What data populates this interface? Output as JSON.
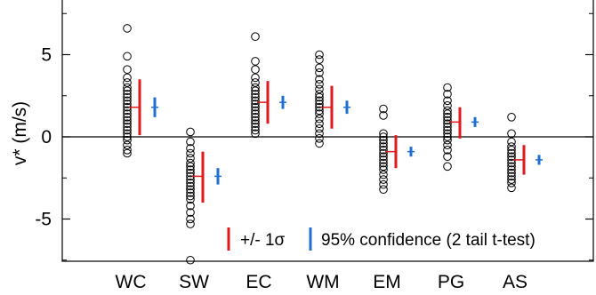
{
  "chart_data": {
    "type": "scatter",
    "ylabel": "v* (m/s)",
    "ylim": [
      -7.8,
      8.0
    ],
    "yticks": [
      -5,
      0,
      5
    ],
    "ytick_labels": [
      "-5",
      "0",
      "5"
    ],
    "zero_line": true,
    "grid": false,
    "legend_position": "bottom-right",
    "categories": [
      "WC",
      "SW",
      "EC",
      "WM",
      "EM",
      "PG",
      "AS"
    ],
    "colors": {
      "points": "#000000",
      "sigma": "#e0191c",
      "ci": "#1f6fd1",
      "axis": "#000000"
    },
    "series": [
      {
        "name": "+/- 1σ",
        "values": [
          {
            "mean": 1.8,
            "low": 0.1,
            "high": 3.5
          },
          {
            "mean": -2.4,
            "low": -4.0,
            "high": -0.9
          },
          {
            "mean": 2.1,
            "low": 0.8,
            "high": 3.4
          },
          {
            "mean": 1.8,
            "low": 0.5,
            "high": 3.1
          },
          {
            "mean": -0.9,
            "low": -1.9,
            "high": 0.1
          },
          {
            "mean": 0.9,
            "low": -0.1,
            "high": 1.8
          },
          {
            "mean": -1.4,
            "low": -2.3,
            "high": -0.5
          }
        ]
      },
      {
        "name": "95% confidence (2 tail t-test)",
        "values": [
          {
            "mean": 1.8,
            "low": 1.2,
            "high": 2.4
          },
          {
            "mean": -2.4,
            "low": -2.9,
            "high": -1.9
          },
          {
            "mean": 2.1,
            "low": 1.7,
            "high": 2.5
          },
          {
            "mean": 1.8,
            "low": 1.4,
            "high": 2.2
          },
          {
            "mean": -0.9,
            "low": -1.2,
            "high": -0.6
          },
          {
            "mean": 0.9,
            "low": 0.6,
            "high": 1.2
          },
          {
            "mean": -1.4,
            "low": -1.7,
            "high": -1.1
          }
        ]
      }
    ],
    "points": [
      [
        6.6,
        4.9,
        4.1,
        3.6,
        3.3,
        3.0,
        2.8,
        2.6,
        2.4,
        2.2,
        2.0,
        1.8,
        1.6,
        1.4,
        1.2,
        1.0,
        0.8,
        0.6,
        0.4,
        0.2,
        0.0,
        -0.2,
        -0.5,
        -0.8,
        -1.0
      ],
      [
        0.3,
        -0.3,
        -0.7,
        -1.0,
        -1.3,
        -1.6,
        -1.8,
        -2.0,
        -2.2,
        -2.4,
        -2.6,
        -2.8,
        -3.0,
        -3.2,
        -3.4,
        -3.6,
        -3.8,
        -4.2,
        -4.6,
        -5.0,
        -5.3,
        -7.5
      ],
      [
        6.1,
        4.6,
        4.1,
        3.6,
        3.3,
        3.0,
        2.8,
        2.6,
        2.4,
        2.2,
        2.0,
        1.8,
        1.6,
        1.4,
        1.2,
        1.0,
        0.8,
        0.6,
        0.4,
        0.2
      ],
      [
        5.0,
        4.7,
        4.2,
        3.9,
        3.5,
        3.2,
        2.9,
        2.6,
        2.4,
        2.2,
        2.0,
        1.8,
        1.6,
        1.4,
        1.1,
        0.8,
        0.5,
        0.2,
        -0.1,
        -0.4
      ],
      [
        1.7,
        1.3,
        0.2,
        0.0,
        -0.2,
        -0.4,
        -0.6,
        -0.8,
        -1.0,
        -1.2,
        -1.4,
        -1.6,
        -1.8,
        -2.0,
        -2.3,
        -2.6,
        -2.9,
        -3.2
      ],
      [
        3.0,
        2.6,
        2.2,
        1.9,
        1.6,
        1.4,
        1.2,
        1.0,
        0.8,
        0.6,
        0.4,
        0.2,
        0.0,
        -0.2,
        -0.5,
        -0.8,
        -1.2,
        -1.8
      ],
      [
        1.2,
        0.2,
        -0.3,
        -0.6,
        -0.8,
        -1.0,
        -1.2,
        -1.4,
        -1.6,
        -1.8,
        -2.0,
        -2.2,
        -2.4,
        -2.6,
        -2.8,
        -3.1
      ]
    ]
  }
}
